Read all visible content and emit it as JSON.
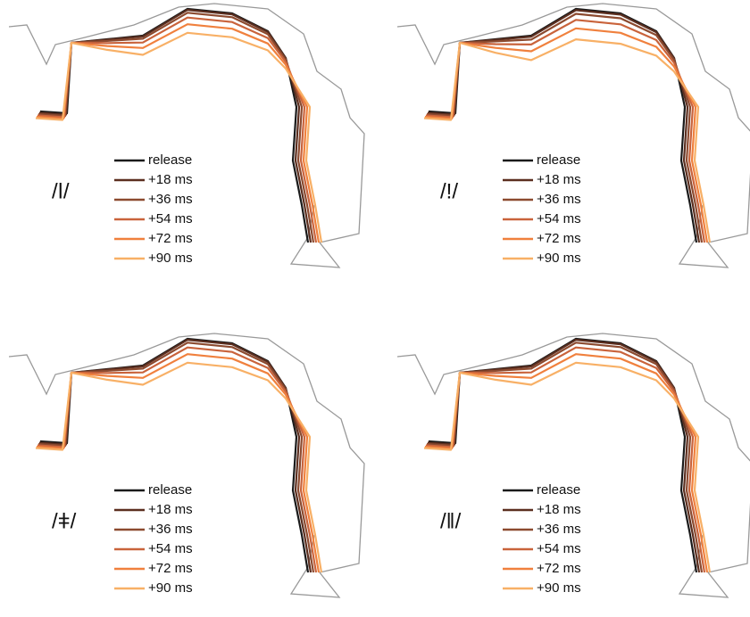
{
  "panels": [
    {
      "label": "/ǀ/",
      "series": [
        {
          "name": "release",
          "color": "#1a1a1a"
        },
        {
          "name": "+18 ms",
          "color": "#5b2e1f"
        },
        {
          "name": "+36 ms",
          "color": "#8c4a2f"
        },
        {
          "name": "+54 ms",
          "color": "#c9633b"
        },
        {
          "name": "+72 ms",
          "color": "#f0803d"
        },
        {
          "name": "+90 ms",
          "color": "#f8b066"
        }
      ]
    },
    {
      "label": "/!/",
      "series": [
        {
          "name": "release",
          "color": "#1a1a1a"
        },
        {
          "name": "+18 ms",
          "color": "#5b2e1f"
        },
        {
          "name": "+36 ms",
          "color": "#8c4a2f"
        },
        {
          "name": "+54 ms",
          "color": "#c9633b"
        },
        {
          "name": "+72 ms",
          "color": "#f0803d"
        },
        {
          "name": "+90 ms",
          "color": "#f8b066"
        }
      ]
    },
    {
      "label": "/ǂ/",
      "series": [
        {
          "name": "release",
          "color": "#1a1a1a"
        },
        {
          "name": "+18 ms",
          "color": "#5b2e1f"
        },
        {
          "name": "+36 ms",
          "color": "#8c4a2f"
        },
        {
          "name": "+54 ms",
          "color": "#c9633b"
        },
        {
          "name": "+72 ms",
          "color": "#f0803d"
        },
        {
          "name": "+90 ms",
          "color": "#f8b066"
        }
      ]
    },
    {
      "label": "/ǁ/",
      "series": [
        {
          "name": "release",
          "color": "#1a1a1a"
        },
        {
          "name": "+18 ms",
          "color": "#5b2e1f"
        },
        {
          "name": "+36 ms",
          "color": "#8c4a2f"
        },
        {
          "name": "+54 ms",
          "color": "#c9633b"
        },
        {
          "name": "+72 ms",
          "color": "#f0803d"
        },
        {
          "name": "+90 ms",
          "color": "#f8b066"
        }
      ]
    }
  ]
}
